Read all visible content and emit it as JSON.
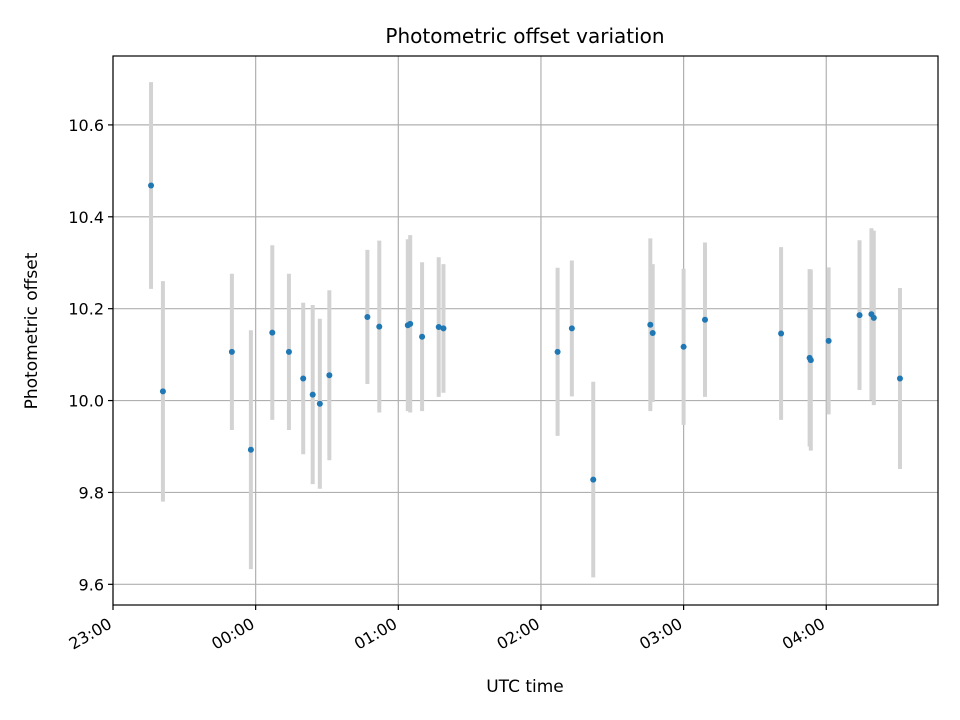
{
  "chart_data": {
    "type": "scatter",
    "title": "Photometric offset variation",
    "xlabel": "UTC time",
    "ylabel": "Photometric offset",
    "x_tick_labels": [
      "23:00",
      "00:00",
      "01:00",
      "02:00",
      "03:00",
      "04:00"
    ],
    "y_tick_labels": [
      "9.6",
      "9.8",
      "10.0",
      "10.2",
      "10.4",
      "10.6"
    ],
    "x_ticks_minutes": [
      0,
      60,
      120,
      180,
      240,
      300
    ],
    "y_ticks": [
      9.6,
      9.8,
      10.0,
      10.2,
      10.4,
      10.6
    ],
    "xlim_minutes": [
      0,
      347
    ],
    "ylim": [
      9.555,
      10.75
    ],
    "grid": true,
    "colors": {
      "point": "#1f77b4",
      "errorbar": "#d3d3d3",
      "grid": "#b0b0b0"
    },
    "points": [
      {
        "t": 16,
        "y": 10.468,
        "err": 0.225
      },
      {
        "t": 21,
        "y": 10.02,
        "err": 0.24
      },
      {
        "t": 50,
        "y": 10.106,
        "err": 0.17
      },
      {
        "t": 58,
        "y": 9.893,
        "err": 0.26
      },
      {
        "t": 67,
        "y": 10.148,
        "err": 0.19
      },
      {
        "t": 74,
        "y": 10.106,
        "err": 0.17
      },
      {
        "t": 80,
        "y": 10.048,
        "err": 0.165
      },
      {
        "t": 84,
        "y": 10.013,
        "err": 0.195
      },
      {
        "t": 87,
        "y": 9.993,
        "err": 0.185
      },
      {
        "t": 91,
        "y": 10.055,
        "err": 0.185
      },
      {
        "t": 107,
        "y": 10.182,
        "err": 0.146
      },
      {
        "t": 112,
        "y": 10.161,
        "err": 0.187
      },
      {
        "t": 124,
        "y": 10.164,
        "err": 0.187
      },
      {
        "t": 125,
        "y": 10.167,
        "err": 0.193
      },
      {
        "t": 130,
        "y": 10.139,
        "err": 0.162
      },
      {
        "t": 137,
        "y": 10.16,
        "err": 0.152
      },
      {
        "t": 139,
        "y": 10.157,
        "err": 0.14
      },
      {
        "t": 187,
        "y": 10.106,
        "err": 0.183
      },
      {
        "t": 193,
        "y": 10.157,
        "err": 0.148
      },
      {
        "t": 202,
        "y": 9.828,
        "err": 0.213
      },
      {
        "t": 226,
        "y": 10.165,
        "err": 0.188
      },
      {
        "t": 227,
        "y": 10.147,
        "err": 0.15
      },
      {
        "t": 240,
        "y": 10.117,
        "err": 0.17
      },
      {
        "t": 249,
        "y": 10.176,
        "err": 0.168
      },
      {
        "t": 281,
        "y": 10.146,
        "err": 0.188
      },
      {
        "t": 293,
        "y": 10.093,
        "err": 0.193
      },
      {
        "t": 293.5,
        "y": 10.088,
        "err": 0.197
      },
      {
        "t": 301,
        "y": 10.13,
        "err": 0.16
      },
      {
        "t": 314,
        "y": 10.186,
        "err": 0.163
      },
      {
        "t": 319,
        "y": 10.188,
        "err": 0.187
      },
      {
        "t": 320,
        "y": 10.18,
        "err": 0.19
      },
      {
        "t": 331,
        "y": 10.048,
        "err": 0.197
      }
    ]
  }
}
